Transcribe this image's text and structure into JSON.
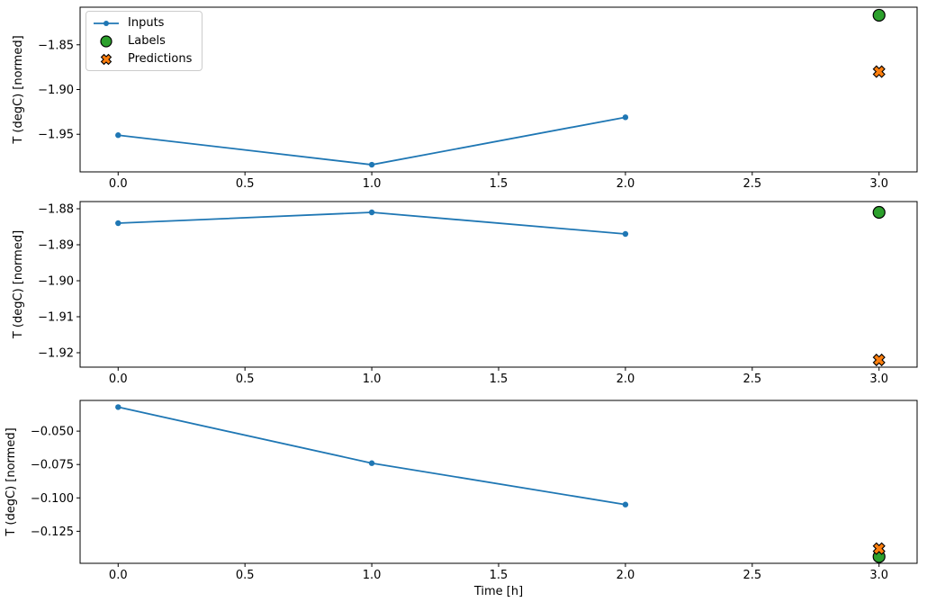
{
  "figure": {
    "xlabel": "Time [h]",
    "background_color": "#ffffff",
    "frame_color": "#000000",
    "marker_edge_color": "#000000"
  },
  "legend": {
    "position": "upper left of first subplot",
    "items": [
      {
        "label": "Inputs",
        "marker": "line-with-dot",
        "color": "#1f77b4"
      },
      {
        "label": "Labels",
        "marker": "filled-circle",
        "color": "#2ca02c"
      },
      {
        "label": "Predictions",
        "marker": "filled-x",
        "color": "#ff7f0e"
      }
    ]
  },
  "chart_data": [
    {
      "type": "line",
      "title": "",
      "ylabel": "T (degC) [normed]",
      "series": [
        {
          "name": "Inputs",
          "style": "line+marker",
          "color": "#1f77b4",
          "x": [
            0.0,
            1.0,
            2.0
          ],
          "y": [
            -1.951,
            -1.984,
            -1.931
          ]
        },
        {
          "name": "Labels",
          "style": "scatter-circle",
          "color": "#2ca02c",
          "x": [
            3.0
          ],
          "y": [
            -1.817
          ]
        },
        {
          "name": "Predictions",
          "style": "scatter-x",
          "color": "#ff7f0e",
          "x": [
            3.0
          ],
          "y": [
            -1.88
          ]
        }
      ],
      "xlim": [
        -0.15,
        3.15
      ],
      "ylim": [
        -1.992,
        -1.808
      ],
      "xticks": [
        0.0,
        0.5,
        1.0,
        1.5,
        2.0,
        2.5,
        3.0
      ],
      "xtick_labels": [
        "0.0",
        "0.5",
        "1.0",
        "1.5",
        "2.0",
        "2.5",
        "3.0"
      ],
      "yticks": [
        -1.85,
        -1.9,
        -1.95
      ],
      "ytick_labels": [
        "−1.85",
        "−1.90",
        "−1.95"
      ],
      "grid": false,
      "legend_visible": true
    },
    {
      "type": "line",
      "title": "",
      "ylabel": "T (degC) [normed]",
      "series": [
        {
          "name": "Inputs",
          "style": "line+marker",
          "color": "#1f77b4",
          "x": [
            0.0,
            1.0,
            2.0
          ],
          "y": [
            -1.884,
            -1.881,
            -1.887
          ]
        },
        {
          "name": "Labels",
          "style": "scatter-circle",
          "color": "#2ca02c",
          "x": [
            3.0
          ],
          "y": [
            -1.881
          ]
        },
        {
          "name": "Predictions",
          "style": "scatter-x",
          "color": "#ff7f0e",
          "x": [
            3.0
          ],
          "y": [
            -1.922
          ]
        }
      ],
      "xlim": [
        -0.15,
        3.15
      ],
      "ylim": [
        -1.924,
        -1.878
      ],
      "xticks": [
        0.0,
        0.5,
        1.0,
        1.5,
        2.0,
        2.5,
        3.0
      ],
      "xtick_labels": [
        "0.0",
        "0.5",
        "1.0",
        "1.5",
        "2.0",
        "2.5",
        "3.0"
      ],
      "yticks": [
        -1.88,
        -1.89,
        -1.9,
        -1.91,
        -1.92
      ],
      "ytick_labels": [
        "−1.88",
        "−1.89",
        "−1.90",
        "−1.91",
        "−1.92"
      ],
      "grid": false,
      "legend_visible": false
    },
    {
      "type": "line",
      "title": "",
      "ylabel": "T (degC) [normed]",
      "series": [
        {
          "name": "Inputs",
          "style": "line+marker",
          "color": "#1f77b4",
          "x": [
            0.0,
            1.0,
            2.0
          ],
          "y": [
            -0.032,
            -0.074,
            -0.105
          ]
        },
        {
          "name": "Labels",
          "style": "scatter-circle",
          "color": "#2ca02c",
          "x": [
            3.0
          ],
          "y": [
            -0.144
          ]
        },
        {
          "name": "Predictions",
          "style": "scatter-x",
          "color": "#ff7f0e",
          "x": [
            3.0
          ],
          "y": [
            -0.138
          ]
        }
      ],
      "xlim": [
        -0.15,
        3.15
      ],
      "ylim": [
        -0.149,
        -0.027
      ],
      "xticks": [
        0.0,
        0.5,
        1.0,
        1.5,
        2.0,
        2.5,
        3.0
      ],
      "xtick_labels": [
        "0.0",
        "0.5",
        "1.0",
        "1.5",
        "2.0",
        "2.5",
        "3.0"
      ],
      "yticks": [
        -0.05,
        -0.075,
        -0.1,
        -0.125
      ],
      "ytick_labels": [
        "−0.050",
        "−0.075",
        "−0.100",
        "−0.125"
      ],
      "grid": false,
      "legend_visible": false
    }
  ]
}
